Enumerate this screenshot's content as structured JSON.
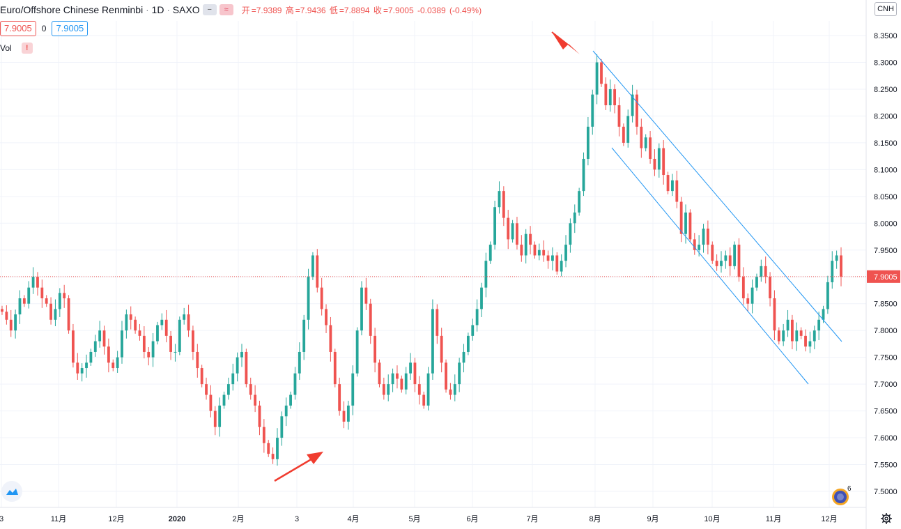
{
  "legend": {
    "symbol": "Euro/Offshore Chinese Renminbi",
    "interval": "1D",
    "exchange": "SAXO",
    "open_label": "开",
    "open": "=7.9389",
    "high_label": "高",
    "high": "=7.9436",
    "low_label": "低",
    "low": "=7.8894",
    "close_label": "收",
    "close": "=7.9005",
    "change": "-0.0389",
    "change_pct": "(-0.49%)"
  },
  "quote": {
    "bid": "7.9005",
    "spread": "0",
    "ask": "7.9005"
  },
  "volume": {
    "label": "Vol",
    "warning": "!"
  },
  "currency": "CNH",
  "indicator_badge": "6",
  "colors": {
    "up": "#26a69a",
    "down": "#ef5350",
    "channel": "#2196f3",
    "arrow": "#f03c2f",
    "price_line": "#ef5350"
  },
  "chart_data": {
    "type": "candlestick",
    "ylim": [
      7.48,
      8.37
    ],
    "y_ticks": [
      "8.3500",
      "8.3000",
      "8.2500",
      "8.2000",
      "8.1500",
      "8.1000",
      "8.0500",
      "8.0000",
      "7.9500",
      "7.9000",
      "7.8500",
      "7.8000",
      "7.7500",
      "7.7000",
      "7.6500",
      "7.6000",
      "7.5500",
      "7.5000"
    ],
    "x_labels": [
      "3",
      "11月",
      "12月",
      "2020",
      "2月",
      "3",
      "4月",
      "5月",
      "6月",
      "7月",
      "8月",
      "9月",
      "10月",
      "11月",
      "12月"
    ],
    "last_price": "7.9005",
    "closes": [
      7.835,
      7.82,
      7.8,
      7.83,
      7.86,
      7.85,
      7.88,
      7.9,
      7.88,
      7.86,
      7.85,
      7.82,
      7.84,
      7.87,
      7.86,
      7.8,
      7.74,
      7.72,
      7.73,
      7.74,
      7.76,
      7.78,
      7.8,
      7.77,
      7.74,
      7.73,
      7.75,
      7.8,
      7.83,
      7.82,
      7.8,
      7.79,
      7.76,
      7.75,
      7.78,
      7.81,
      7.82,
      7.79,
      7.76,
      7.76,
      7.82,
      7.83,
      7.8,
      7.76,
      7.73,
      7.7,
      7.68,
      7.65,
      7.62,
      7.66,
      7.68,
      7.7,
      7.72,
      7.75,
      7.76,
      7.7,
      7.68,
      7.66,
      7.62,
      7.59,
      7.57,
      7.56,
      7.6,
      7.64,
      7.66,
      7.68,
      7.72,
      7.76,
      7.82,
      7.9,
      7.94,
      7.88,
      7.84,
      7.81,
      7.76,
      7.7,
      7.65,
      7.63,
      7.66,
      7.72,
      7.8,
      7.88,
      7.85,
      7.79,
      7.74,
      7.7,
      7.68,
      7.7,
      7.72,
      7.71,
      7.69,
      7.72,
      7.74,
      7.7,
      7.68,
      7.66,
      7.72,
      7.84,
      7.79,
      7.74,
      7.69,
      7.68,
      7.7,
      7.74,
      7.76,
      7.79,
      7.81,
      7.84,
      7.88,
      7.93,
      7.96,
      8.03,
      8.06,
      8.01,
      7.97,
      8.0,
      7.96,
      7.94,
      7.98,
      7.96,
      7.94,
      7.95,
      7.94,
      7.93,
      7.94,
      7.91,
      7.93,
      7.96,
      8.0,
      8.02,
      8.06,
      8.12,
      8.18,
      8.24,
      8.3,
      8.26,
      8.22,
      8.25,
      8.22,
      8.18,
      8.15,
      8.2,
      8.24,
      8.18,
      8.14,
      8.16,
      8.12,
      8.1,
      8.14,
      8.09,
      8.06,
      8.08,
      8.04,
      7.98,
      8.02,
      7.97,
      7.95,
      7.96,
      7.99,
      7.96,
      7.93,
      7.92,
      7.93,
      7.94,
      7.92,
      7.96,
      7.9,
      7.86,
      7.85,
      7.88,
      7.9,
      7.92,
      7.9,
      7.86,
      7.8,
      7.78,
      7.8,
      7.82,
      7.78,
      7.8,
      7.79,
      7.77,
      7.78,
      7.8,
      7.82,
      7.84,
      7.89,
      7.93,
      7.94,
      7.9005
    ]
  }
}
